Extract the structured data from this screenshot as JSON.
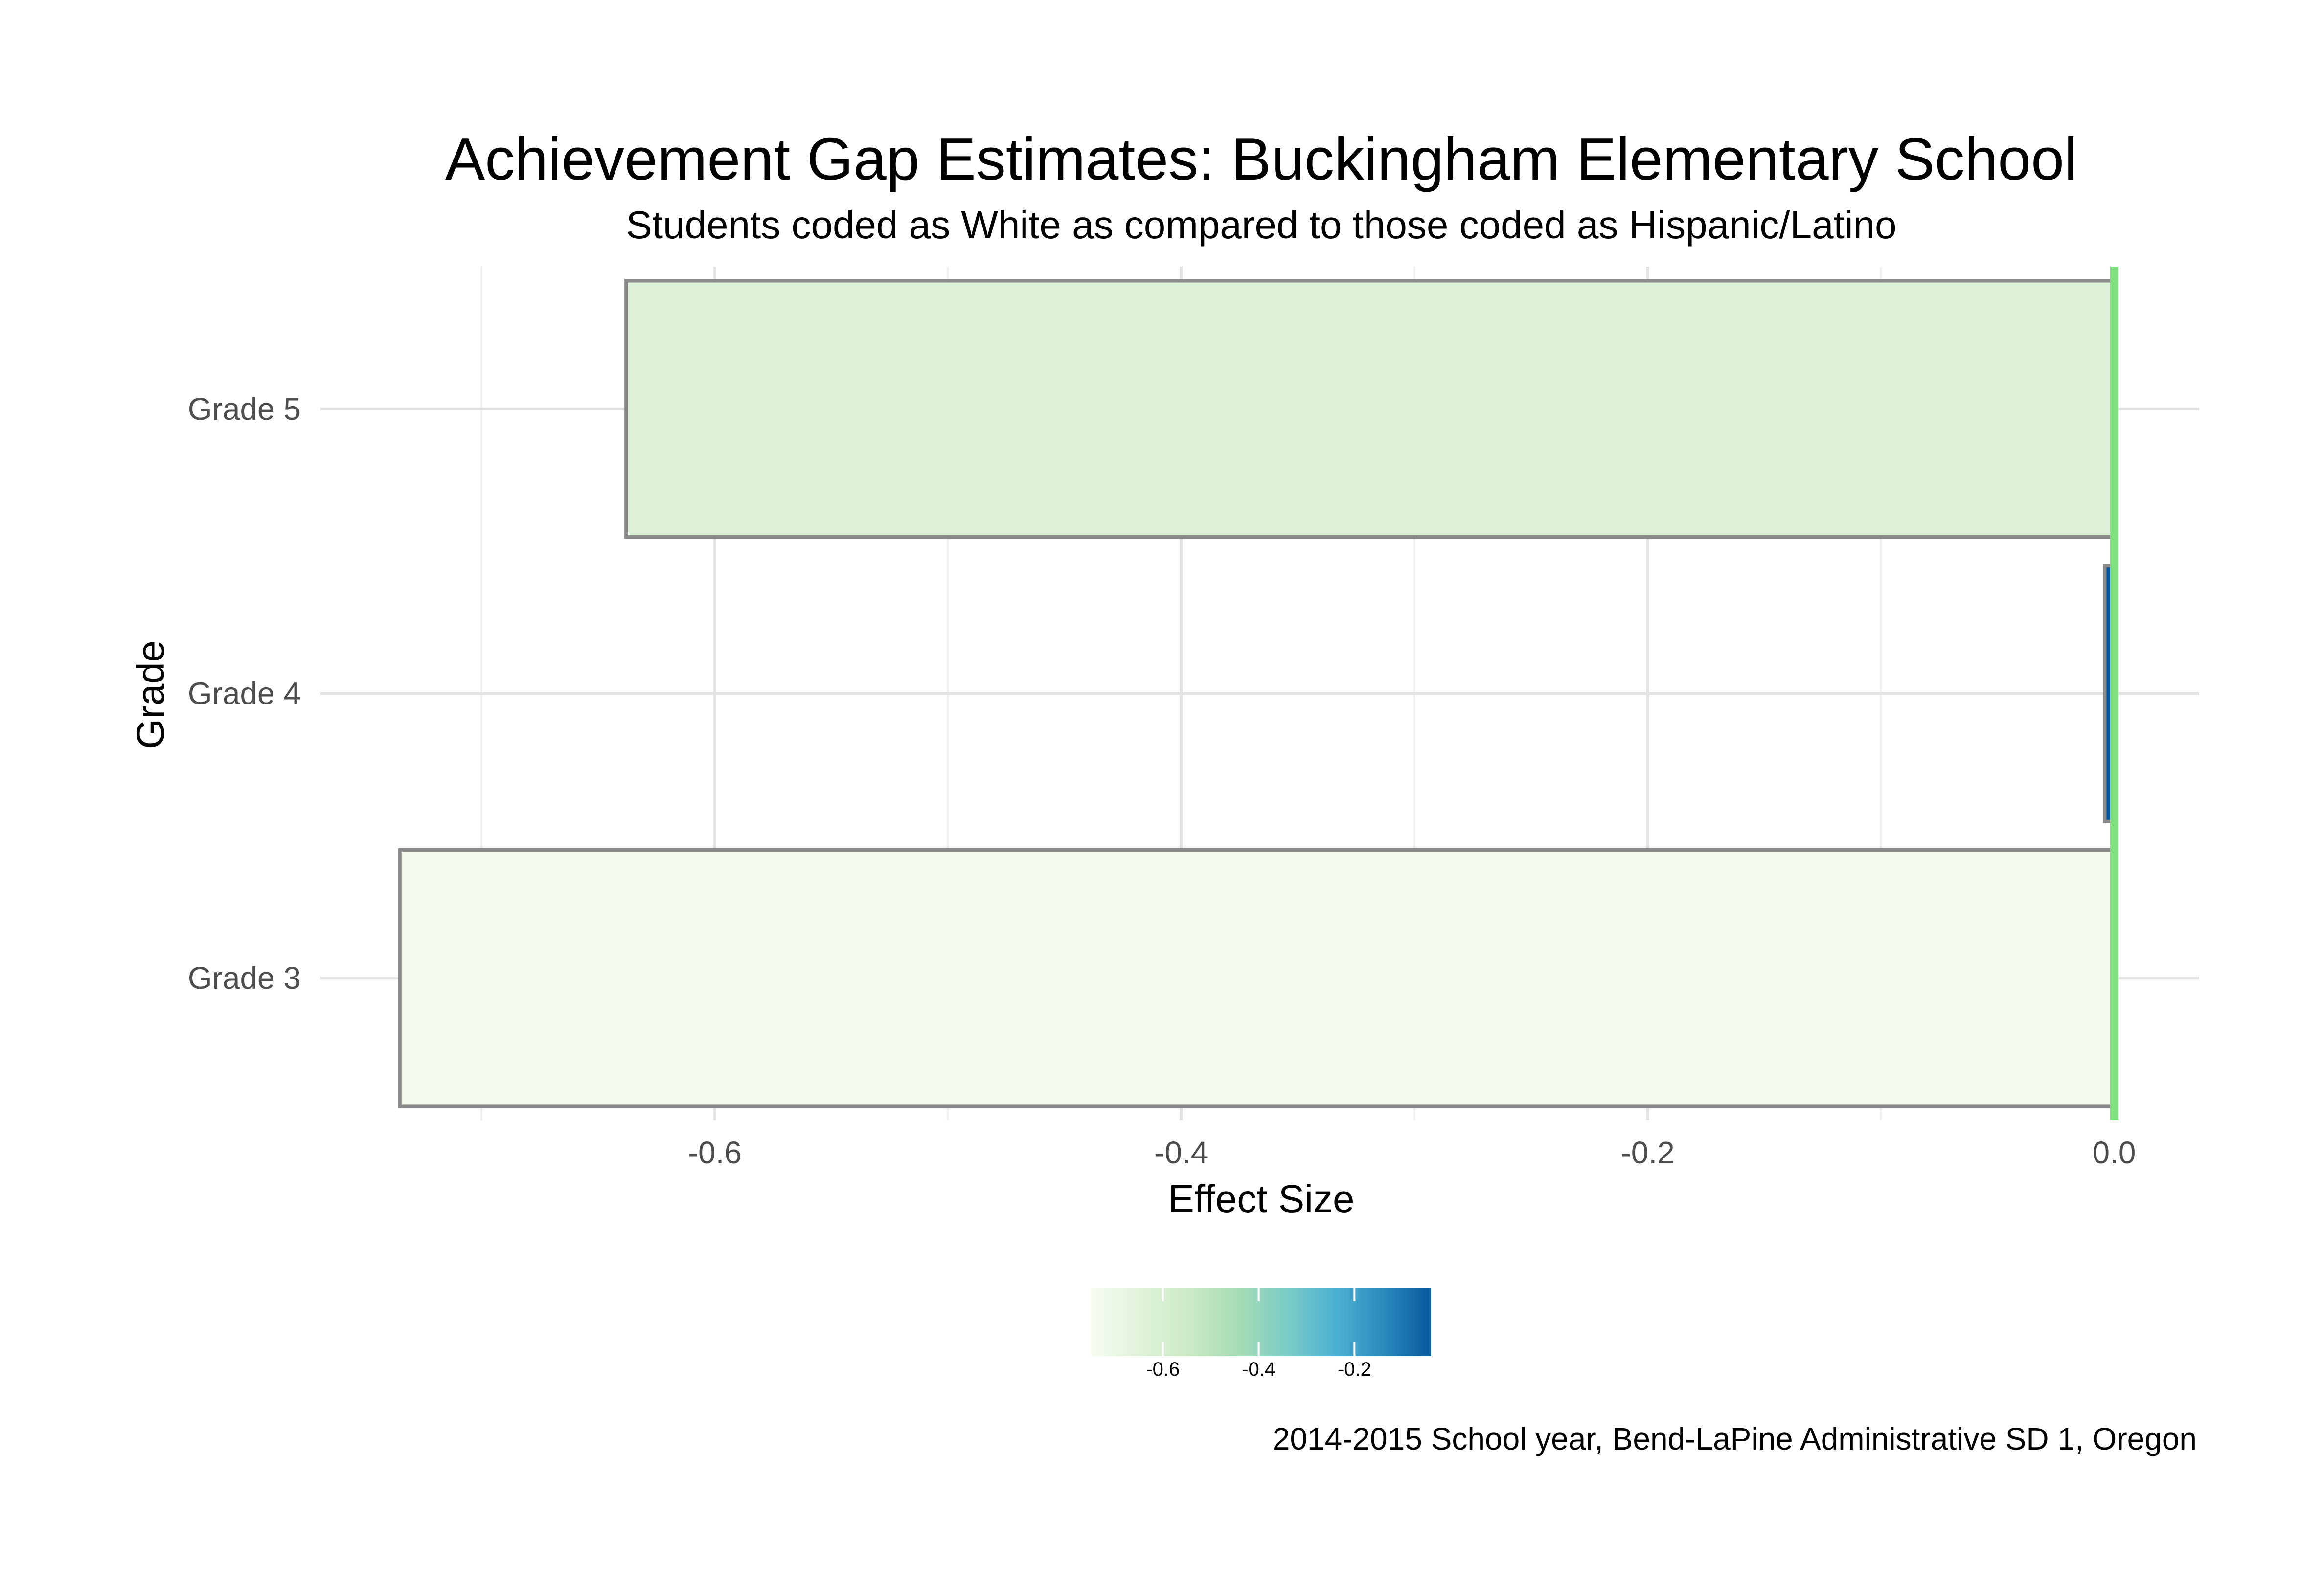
{
  "chart_data": {
    "type": "bar",
    "orientation": "horizontal",
    "title": "Achievement Gap Estimates: Buckingham Elementary School",
    "subtitle": "Students coded as White as compared to those coded as Hispanic/Latino",
    "xlabel": "Effect Size",
    "ylabel": "Grade",
    "categories": [
      "Grade 3",
      "Grade 4",
      "Grade 5"
    ],
    "values": [
      -0.735,
      -0.004,
      -0.638
    ],
    "xlim": [
      -0.76,
      0.04
    ],
    "x_ticks": [
      -0.6,
      -0.4,
      -0.2,
      0.0
    ],
    "x_tick_labels": [
      "-0.6",
      "-0.4",
      "-0.2",
      "0.0"
    ],
    "x_minor_ticks": [
      -0.7,
      -0.5,
      -0.3,
      -0.1
    ],
    "reference_line": {
      "x": 0.0,
      "color": "#7fe07f"
    },
    "grid": true,
    "bar_outline_color": "#8a8a8a",
    "legend": {
      "type": "colorbar",
      "placement": "bottom",
      "range": [
        -0.75,
        -0.04
      ],
      "ticks": [
        -0.6,
        -0.4,
        -0.2
      ],
      "tick_labels": [
        "-0.6",
        "-0.4",
        "-0.2"
      ],
      "colors": [
        "#f7fcf0",
        "#e0f3db",
        "#ccebc5",
        "#a8ddb5",
        "#7bccc4",
        "#4eb3d3",
        "#2b8cbe",
        "#08589e"
      ]
    },
    "caption": "2014-2015 School year, Bend-LaPine Administrative SD 1, Oregon"
  }
}
